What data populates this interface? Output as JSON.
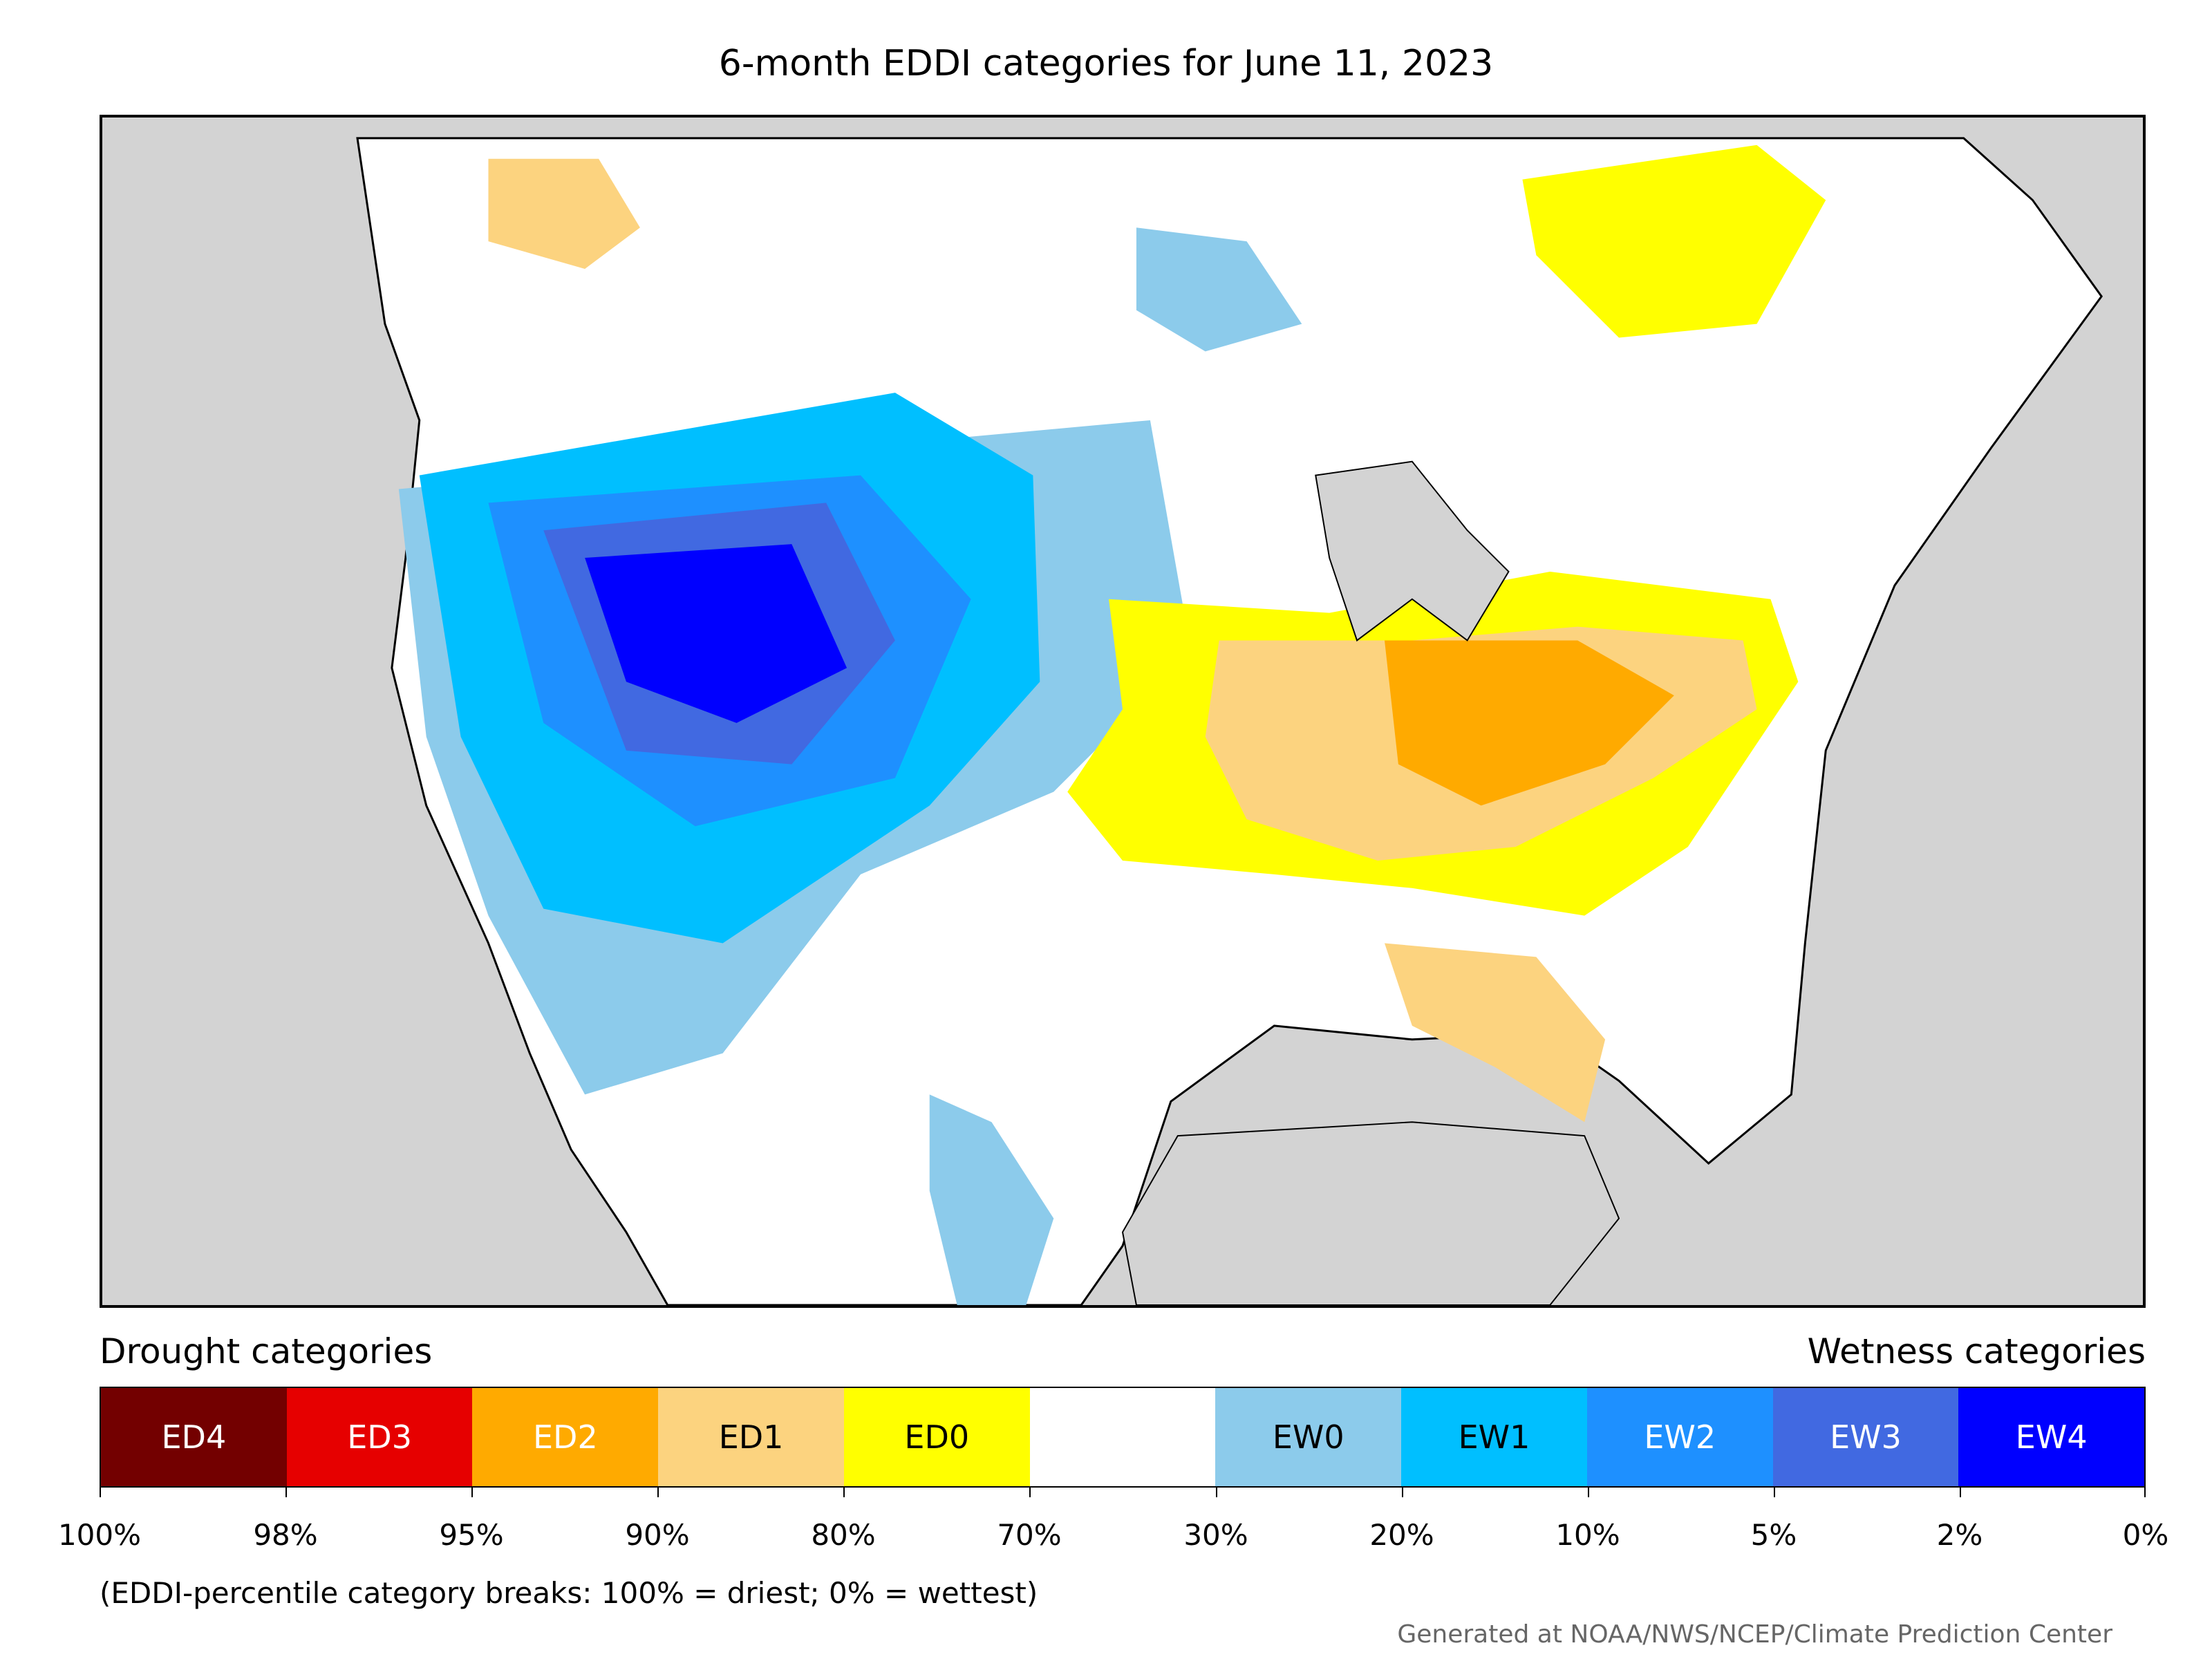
{
  "title": "6-month EDDI categories for June 11, 2023",
  "legend": {
    "drought_heading": "Drought categories",
    "wetness_heading": "Wetness categories",
    "categories": [
      {
        "label": "ED4",
        "color": "#730000",
        "text_color": "#ffffff"
      },
      {
        "label": "ED3",
        "color": "#e60000",
        "text_color": "#ffffff"
      },
      {
        "label": "ED2",
        "color": "#ffaa00",
        "text_color": "#ffffff"
      },
      {
        "label": "ED1",
        "color": "#fcd37f",
        "text_color": "#000000"
      },
      {
        "label": "ED0",
        "color": "#ffff00",
        "text_color": "#000000"
      },
      {
        "label": "",
        "color": "#ffffff",
        "text_color": "#000000"
      },
      {
        "label": "EW0",
        "color": "#8ccbeb",
        "text_color": "#000000"
      },
      {
        "label": "EW1",
        "color": "#00bfff",
        "text_color": "#000000"
      },
      {
        "label": "EW2",
        "color": "#1e90ff",
        "text_color": "#ffffff"
      },
      {
        "label": "EW3",
        "color": "#4169e1",
        "text_color": "#ffffff"
      },
      {
        "label": "EW4",
        "color": "#0000ff",
        "text_color": "#ffffff"
      }
    ],
    "ticks": [
      "100%",
      "98%",
      "95%",
      "90%",
      "80%",
      "70%",
      "30%",
      "20%",
      "10%",
      "5%",
      "2%",
      "0%"
    ]
  },
  "footnote": "(EDDI-percentile category breaks: 100% = driest; 0% = wettest)",
  "credit": "Generated at NOAA/NWS/NCEP/Climate Prediction Center"
}
